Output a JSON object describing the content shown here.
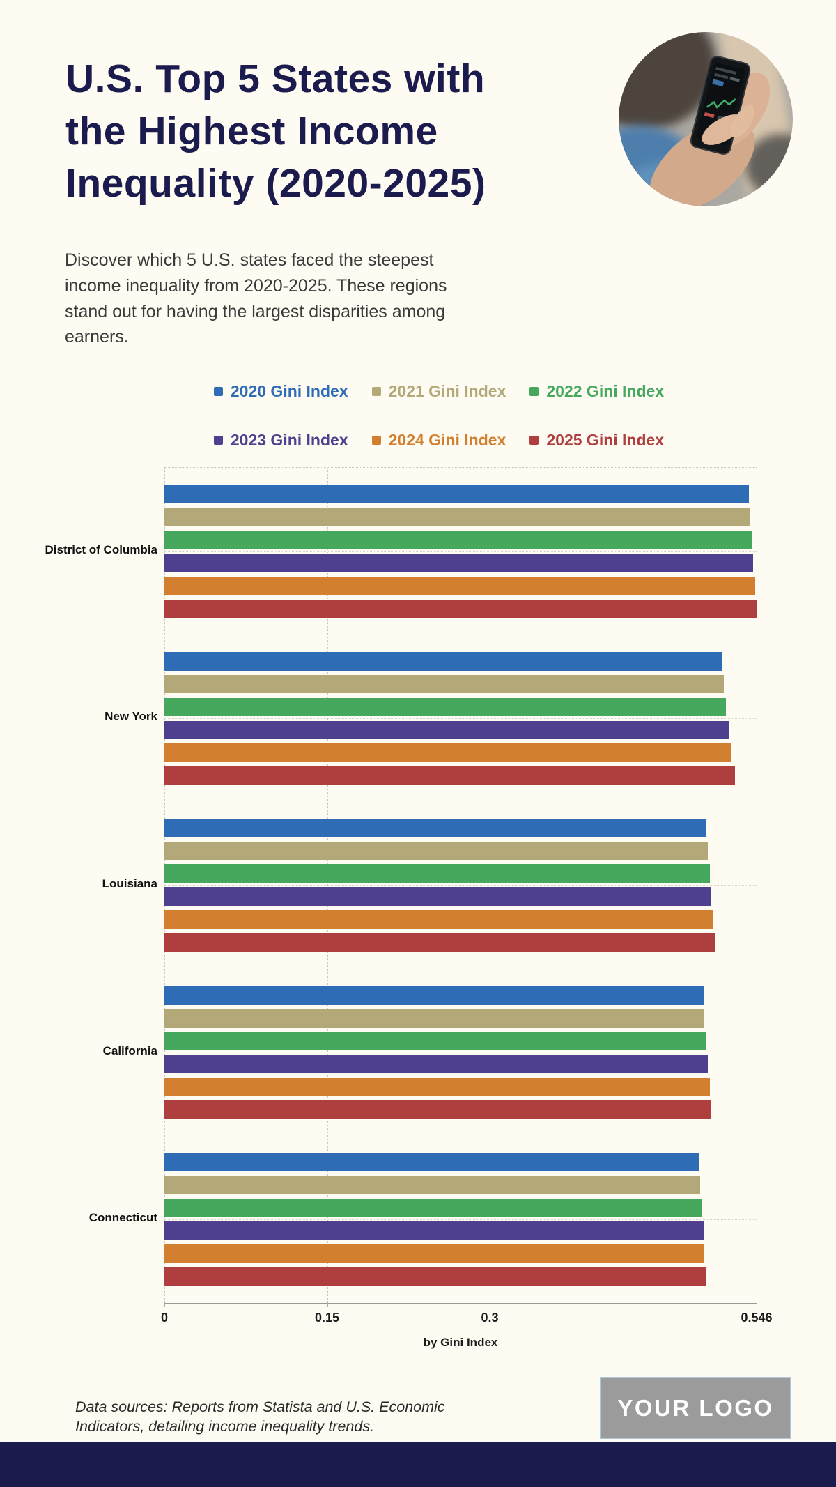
{
  "page": {
    "background_color": "#FDFBF2",
    "title_color": "#1B1B4E",
    "title": "U.S. Top 5 States with the Highest Income Inequality (2020-2025)",
    "title_lines": [
      "U.S. Top 5 States with",
      "the Highest Income",
      "Inequality (2020-2025)"
    ],
    "subtitle_lines": [
      "Discover which 5 U.S. states faced the steepest",
      "income inequality from 2020-2025. These regions",
      "stand out for having the largest disparities among",
      "earners."
    ],
    "hero_image": "person-using-stock-trading-app-on-smartphone",
    "footer_note_lines": [
      "Data sources: Reports from Statista and U.S. Economic",
      "Indicators, detailing income inequality trends."
    ],
    "logo_text": "YOUR LOGO",
    "footer_bar_color": "#1B1B4E"
  },
  "chart_data": {
    "type": "bar",
    "orientation": "horizontal",
    "xlabel": "by Gini Index",
    "xlim": [
      0,
      0.546
    ],
    "x_ticks": [
      0,
      0.15,
      0.3,
      0.546
    ],
    "x_tick_labels": [
      "0",
      "0.15",
      "0.3",
      "0.546"
    ],
    "grid": "dotted",
    "legend_position": "top",
    "legend_rows": [
      [
        0,
        1,
        2
      ],
      [
        3,
        4,
        5
      ]
    ],
    "categories": [
      "District of Columbia",
      "New York",
      "Louisiana",
      "California",
      "Connecticut"
    ],
    "series": [
      {
        "name": "2020 Gini Index",
        "color": "#2E6CB5",
        "values": [
          0.539,
          0.514,
          0.5,
          0.497,
          0.493
        ]
      },
      {
        "name": "2021 Gini Index",
        "color": "#B3A878",
        "values": [
          0.54,
          0.516,
          0.501,
          0.498,
          0.494
        ]
      },
      {
        "name": "2022 Gini Index",
        "color": "#45A85C",
        "values": [
          0.542,
          0.518,
          0.503,
          0.5,
          0.495
        ]
      },
      {
        "name": "2023 Gini Index",
        "color": "#4F3F8F",
        "values": [
          0.543,
          0.521,
          0.504,
          0.501,
          0.497
        ]
      },
      {
        "name": "2024 Gini Index",
        "color": "#D2802F",
        "values": [
          0.545,
          0.523,
          0.506,
          0.503,
          0.498
        ]
      },
      {
        "name": "2025 Gini Index",
        "color": "#AF3F3F",
        "values": [
          0.546,
          0.526,
          0.508,
          0.504,
          0.499
        ]
      }
    ]
  }
}
